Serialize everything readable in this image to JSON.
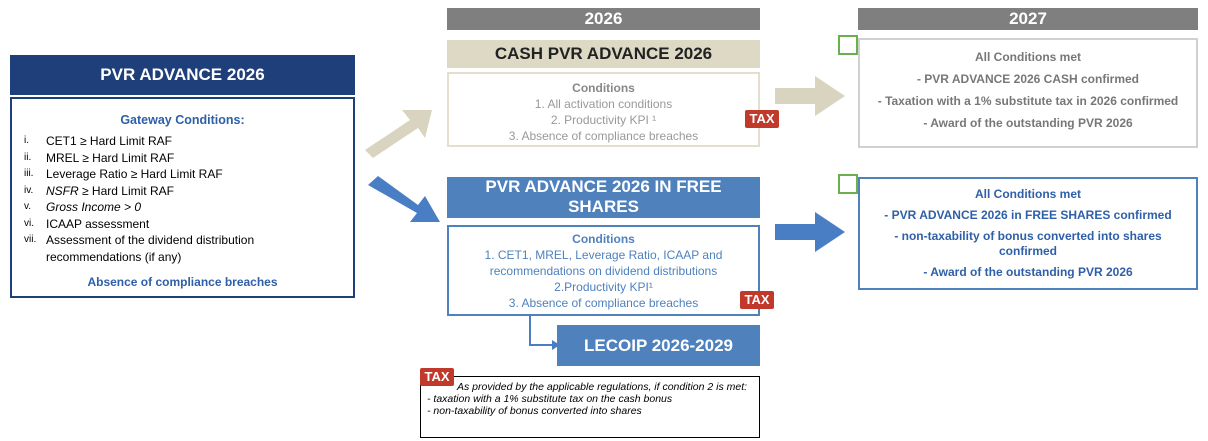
{
  "left_panel": {
    "title": "PVR ADVANCE 2026",
    "subtitle": "Gateway Conditions:",
    "items": [
      {
        "num": "i.",
        "text": "CET1 ≥ Hard Limit RAF"
      },
      {
        "num": "ii.",
        "text": "MREL ≥ Hard Limit RAF"
      },
      {
        "num": "iii.",
        "text": "Leverage Ratio ≥ Hard Limit RAF"
      },
      {
        "num": "iv.",
        "italic": "NSFR",
        "text": "≥ Hard Limit RAF"
      },
      {
        "num": "v.",
        "italic": "Gross Income > 0"
      },
      {
        "num": "vi.",
        "text": "ICAAP assessment"
      },
      {
        "num": "vii.",
        "text": "Assessment of the dividend distribution recommendations (if any)"
      }
    ],
    "footer": "Absence of compliance breaches"
  },
  "tax_label": "TAX",
  "year_2026": "2026",
  "year_2027": "2027",
  "cash": {
    "title": "CASH PVR ADVANCE 2026",
    "conditions_title": "Conditions",
    "conditions": [
      "1. All activation conditions",
      "2. Productivity KPI ¹",
      "3. Absence of compliance breaches"
    ],
    "result": [
      "All Conditions met",
      "- PVR ADVANCE 2026 CASH confirmed",
      "- Taxation with a 1% substitute tax in 2026 confirmed",
      "- Award of the outstanding PVR 2026"
    ]
  },
  "shares": {
    "title": "PVR ADVANCE 2026 IN FREE SHARES",
    "conditions_title": "Conditions",
    "conditions": [
      "1. CET1, MREL, Leverage Ratio, ICAAP and recommendations on dividend distributions",
      "2.Productivity KPI¹",
      "3. Absence of compliance breaches"
    ],
    "result": [
      "All Conditions met",
      "- PVR ADVANCE 2026 in FREE SHARES confirmed",
      "- non-taxability of bonus converted into shares confirmed",
      "- Award of the outstanding PVR 2026"
    ],
    "lecoip": "LECOIP 2026-2029"
  },
  "note": {
    "intro": "As provided by the applicable regulations, if condition 2 is met:",
    "lines": [
      "- taxation with a 1% substitute tax on the cash bonus",
      "- non-taxability of bonus converted into shares"
    ]
  }
}
